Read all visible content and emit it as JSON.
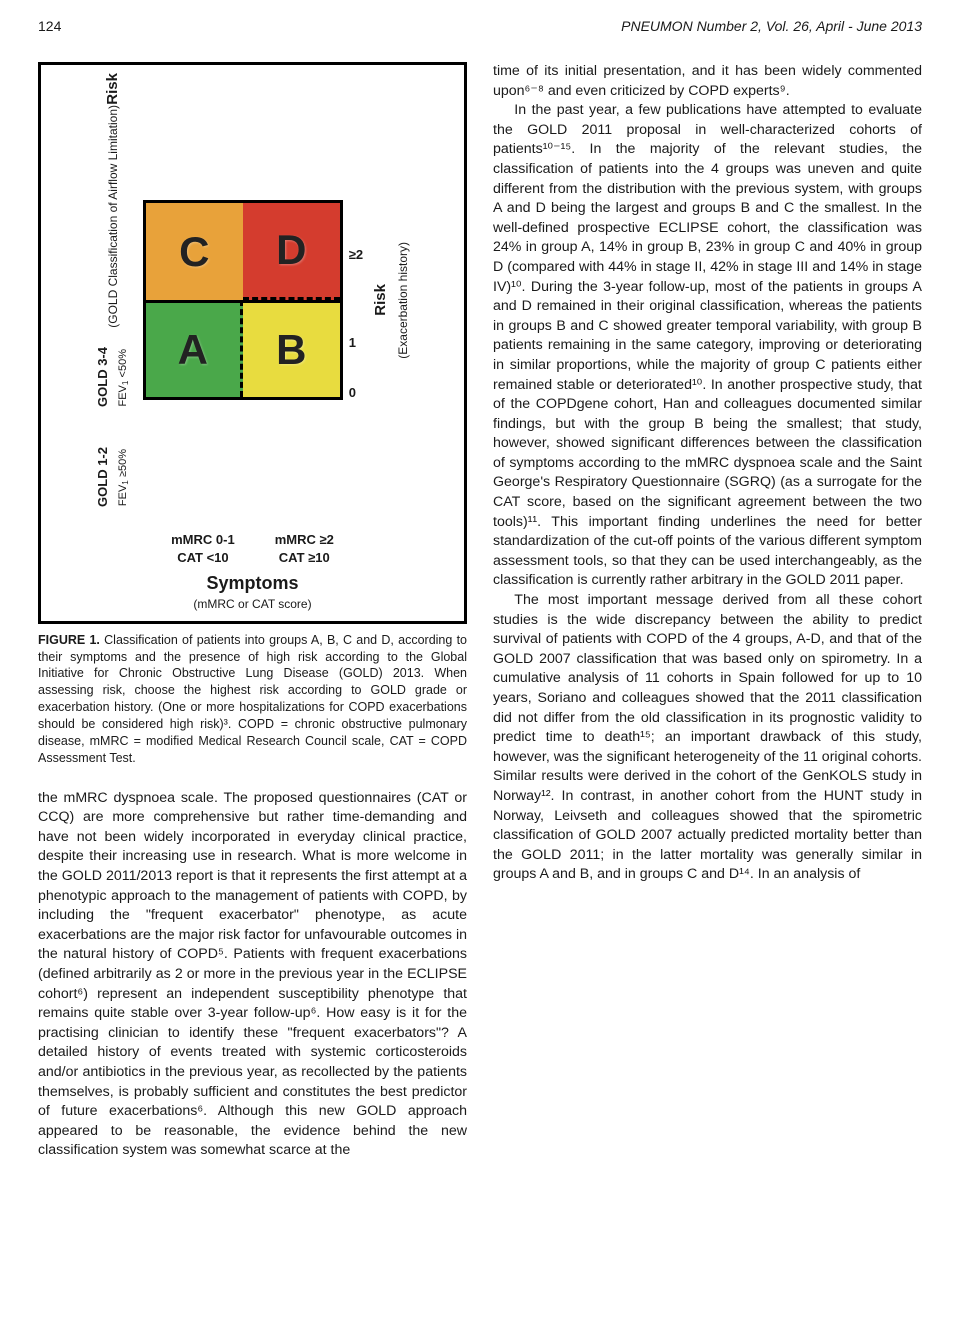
{
  "header": {
    "pagenum": "124",
    "journal": "PNEUMON Number 2, Vol. 26, April - June 2013"
  },
  "figure": {
    "left_axis_title": "Risk",
    "left_axis_sub": "(GOLD Classification of Airflow Limitation)",
    "row_top_g": "GOLD 3-4",
    "row_top_f": "FEV₁ <50%",
    "row_bot_g": "GOLD 1-2",
    "row_bot_f": "FEV₁ ≥50%",
    "cells": {
      "c": "C",
      "d": "D",
      "a": "A",
      "b": "B"
    },
    "cell_colors": {
      "c": "#e8a23a",
      "d": "#d43c2e",
      "a": "#4aa84a",
      "b": "#e8dc3f"
    },
    "right_nums": [
      "≥2",
      "1",
      "0"
    ],
    "right_axis_title": "Risk",
    "right_axis_sub": "(Exacerbation history)",
    "bottom_left": "mMRC 0-1\nCAT <10",
    "bottom_right": "mMRC ≥2\nCAT ≥10",
    "bottom_title": "Symptoms",
    "bottom_sub": "(mMRC or CAT score)"
  },
  "caption": {
    "label": "FIGURE 1.",
    "text": " Classification of patients into groups A, B, C and D, according to their symptoms and the presence of high risk according to the Global Initiative for Chronic Obstructive Lung Disease (GOLD) 2013. When assessing risk, choose the highest risk according to GOLD grade or exacerbation history. (One or more hospitalizations for COPD exacerbations should be considered high risk)³. COPD = chronic obstructive pulmonary disease, mMRC = modified Medical Research Council scale, CAT = COPD Assessment Test."
  },
  "left_body": "the mMRC dyspnoea scale. The proposed questionnaires (CAT or CCQ) are more comprehensive but rather time-demanding and have not been widely incorporated in everyday clinical practice, despite their increasing use in research. What is more welcome in the GOLD 2011/2013 report is that it represents the first attempt at a phenotypic approach to the management of patients with COPD, by including the \"frequent exacerbator\" phenotype, as acute exacerbations are the major risk factor for unfavourable outcomes in the natural history of COPD⁵. Patients with frequent exacerbations (defined arbitrarily as 2 or more in the previous year in the ECLIPSE cohort⁶) represent an independent susceptibility phenotype that remains quite stable over 3-year follow-up⁶. How easy is it for the practising clinician to identify these \"frequent exacerbators\"? A detailed history of events treated with systemic corticosteroids and/or antibiotics in the previous year, as recollected by the patients themselves, is probably sufficient and constitutes the best predictor of future exacerbations⁶. Although this new GOLD approach appeared to be reasonable, the evidence behind the new classification system was somewhat scarce at the",
  "right_p1": "time of its initial presentation, and it has been widely commented upon⁶⁻⁸ and even criticized by COPD experts⁹.",
  "right_p2": "In the past year, a few publications have attempted to evaluate the GOLD 2011 proposal in well-characterized cohorts of patients¹⁰⁻¹⁵. In the majority of the relevant studies, the classification of patients into the 4 groups was uneven and quite different from the distribution with the previous system, with groups A and D being the largest and groups B and C the smallest. In the well-defined prospective ECLIPSE cohort, the classification was 24% in group A, 14% in group B, 23% in group C and 40% in group D (compared with 44% in stage II, 42% in stage III and 14% in stage IV)¹⁰. During the 3-year follow-up, most of the patients in groups A and D remained in their original classification, whereas the patients in groups B and C showed greater temporal variability, with group B patients remaining in the same category, improving or deteriorating in similar proportions, while the majority of group C patients either remained stable or deteriorated¹⁰. In another prospective study, that of the COPDgene cohort, Han and colleagues documented similar findings, but with the group B being the smallest; that study, however, showed significant differences between the classification of symptoms according to the mMRC dyspnoea scale and the Saint George's Respiratory Questionnaire (SGRQ) (as a surrogate for the CAT score, based on the significant agreement between the two tools)¹¹. This important finding underlines the need for better standardization of the cut-off points of the various different symptom assessment tools, so that they can be used interchangeably, as the classification is currently rather arbitrary in the GOLD 2011 paper.",
  "right_p3": "The most important message derived from all these cohort studies is the wide discrepancy between the ability to predict survival of patients with COPD of the 4 groups, A-D, and that of the GOLD 2007 classification that was based only on spirometry. In a cumulative analysis of 11 cohorts in Spain followed for up to 10 years, Soriano and colleagues showed that the 2011 classification did not differ from the old classification in its prognostic validity to predict time to death¹⁵; an important drawback of this study, however, was the significant heterogeneity of the 11 original cohorts. Similar results were derived in the cohort of the GenKOLS study in Norway¹². In contrast, in another cohort from the HUNT study in Norway, Leivseth and colleagues showed that the spirometric classification of GOLD 2007 actually predicted mortality better than the GOLD 2011; in the latter mortality was generally similar in groups A and B, and in groups C and D¹⁴. In an analysis of"
}
